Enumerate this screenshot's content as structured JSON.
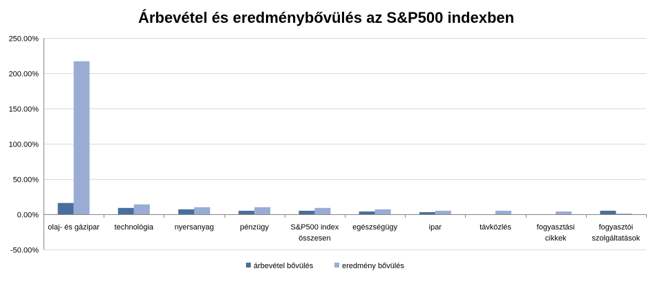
{
  "chart_data": {
    "type": "bar",
    "title": "Árbevétel és eredménybővülés az S&P500 indexben",
    "categories": [
      [
        "olaj- és gázipar"
      ],
      [
        "technológia"
      ],
      [
        "nyersanyag"
      ],
      [
        "pénzügy"
      ],
      [
        "S&P500 index",
        "összesen"
      ],
      [
        "egészségügy"
      ],
      [
        "ipar"
      ],
      [
        "távközlés"
      ],
      [
        "fogyasztási",
        "cikkek"
      ],
      [
        "fogyasztói",
        "szolgáltatások"
      ]
    ],
    "series": [
      {
        "name": "árbevétel bővülés",
        "color": "#4a6f9c",
        "values": [
          16,
          9,
          7,
          5,
          5,
          4,
          3,
          -1,
          0,
          5
        ]
      },
      {
        "name": "eredmény bővülés",
        "color": "#98acd4",
        "values": [
          217,
          14,
          10,
          10,
          9,
          7,
          5,
          5,
          4,
          1
        ]
      }
    ],
    "yticks": [
      "250.00%",
      "200.00%",
      "150.00%",
      "100.00%",
      "50.00%",
      "0.00%",
      "-50.00%"
    ],
    "ylim": [
      -50,
      250
    ],
    "grid": true,
    "legend": "bottom"
  }
}
